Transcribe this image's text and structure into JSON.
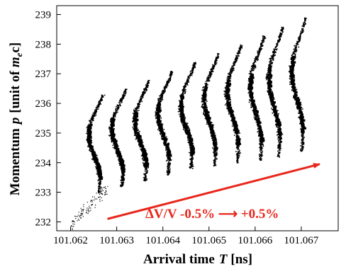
{
  "chart_data": {
    "type": "scatter",
    "xlabel_main": "Arrival time",
    "xlabel_symbol": "T",
    "xlabel_unit": "[ns]",
    "ylabel_main": "Momentum",
    "ylabel_symbol": "p",
    "ylabel_unit_open": "[unit of",
    "ylabel_unit_symbol": "m",
    "ylabel_unit_sub": "e",
    "ylabel_unit_tail": "c]",
    "xlim": [
      101.0617,
      101.0678
    ],
    "ylim": [
      231.7,
      239.3
    ],
    "x_ticks": [
      101.062,
      101.063,
      101.064,
      101.065,
      101.066,
      101.067
    ],
    "x_tick_labels": [
      "101.062",
      "101.063",
      "101.064",
      "101.065",
      "101.066",
      "101.067"
    ],
    "y_ticks": [
      232,
      233,
      234,
      235,
      236,
      237,
      238,
      239
    ],
    "y_tick_labels": [
      "232",
      "233",
      "234",
      "235",
      "236",
      "237",
      "238",
      "239"
    ],
    "annotation": {
      "text": "ΔV/V -0.5% ⟶ +0.5%",
      "color": "#e8271c",
      "arrow_from": [
        101.0628,
        232.1
      ],
      "arrow_to": [
        101.0674,
        233.95
      ]
    },
    "series_color": "#000000",
    "bands": [
      {
        "x0": 101.0626,
        "y0": 233.0,
        "y1": 236.3,
        "dx": 0.0
      },
      {
        "x0": 101.0631,
        "y0": 233.2,
        "y1": 236.5,
        "dx": 0.0
      },
      {
        "x0": 101.0636,
        "y0": 233.4,
        "y1": 236.8,
        "dx": 0.0
      },
      {
        "x0": 101.0641,
        "y0": 233.6,
        "y1": 237.1,
        "dx": 0.0
      },
      {
        "x0": 101.0646,
        "y0": 233.8,
        "y1": 237.4,
        "dx": 0.0
      },
      {
        "x0": 101.0651,
        "y0": 233.9,
        "y1": 237.7,
        "dx": 0.0
      },
      {
        "x0": 101.0656,
        "y0": 234.0,
        "y1": 238.0,
        "dx": 0.0
      },
      {
        "x0": 101.0661,
        "y0": 234.1,
        "y1": 238.3,
        "dx": 0.0
      },
      {
        "x0": 101.0665,
        "y0": 234.2,
        "y1": 238.6,
        "dx": 0.0
      },
      {
        "x0": 101.067,
        "y0": 234.4,
        "y1": 238.9,
        "dx": 0.0
      }
    ]
  }
}
